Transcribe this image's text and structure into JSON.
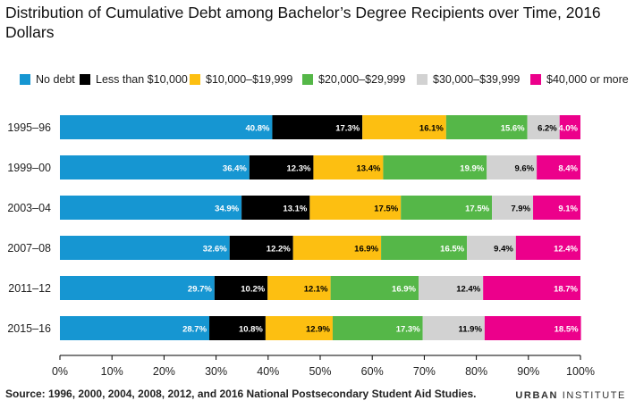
{
  "title": "Distribution of Cumulative Debt among Bachelor’s Degree Recipients over Time, 2016 Dollars",
  "source": "Source: 1996, 2000, 2004, 2008, 2012, and 2016 National Postsecondary Student Aid Studies.",
  "brand": {
    "bold": "URBAN",
    "light": "INSTITUTE"
  },
  "chart_data": {
    "type": "bar",
    "orientation": "horizontal",
    "stacked": true,
    "categories": [
      "1995–96",
      "1999–00",
      "2003–04",
      "2007–08",
      "2011–12",
      "2015–16"
    ],
    "series": [
      {
        "name": "No debt",
        "color": "#1696d2",
        "values": [
          40.8,
          36.4,
          34.9,
          32.6,
          29.7,
          28.7
        ]
      },
      {
        "name": "Less than $10,000",
        "color": "#000000",
        "values": [
          17.3,
          12.3,
          13.1,
          12.2,
          10.2,
          10.8
        ]
      },
      {
        "name": "$10,000–$19,999",
        "color": "#fdbf11",
        "values": [
          16.1,
          13.4,
          17.5,
          16.9,
          12.1,
          12.9
        ]
      },
      {
        "name": "$20,000–$29,999",
        "color": "#55b748",
        "values": [
          15.6,
          19.9,
          17.5,
          16.5,
          16.9,
          17.3
        ]
      },
      {
        "name": "$30,000–$39,999",
        "color": "#d2d2d2",
        "values": [
          6.2,
          9.6,
          7.9,
          9.4,
          12.4,
          11.9
        ]
      },
      {
        "name": "$40,000 or more",
        "color": "#ec008b",
        "values": [
          4.0,
          8.4,
          9.1,
          12.4,
          18.7,
          18.5
        ]
      }
    ],
    "labels": [
      [
        "40.8%",
        "17.3%",
        "16.1%",
        "15.6%",
        "6.2%",
        "4.0%"
      ],
      [
        "36.4%",
        "12.3%",
        "13.4%",
        "19.9%",
        "9.6%",
        "8.4%"
      ],
      [
        "34.9%",
        "13.1%",
        "17.5%",
        "17.5%",
        "7.9%",
        "9.1%"
      ],
      [
        "32.6%",
        "12.2%",
        "16.9%",
        "16.5%",
        "9.4%",
        "12.4%"
      ],
      [
        "29.7%",
        "10.2%",
        "12.1%",
        "16.9%",
        "12.4%",
        "18.7%"
      ],
      [
        "28.7%",
        "10.8%",
        "12.9%",
        "17.3%",
        "11.9%",
        "18.5%"
      ]
    ],
    "label_colors": [
      "#ffffff",
      "#ffffff",
      "#000000",
      "#ffffff",
      "#000000",
      "#ffffff"
    ],
    "xlim": [
      0,
      100
    ],
    "xticks": [
      "0%",
      "10%",
      "20%",
      "30%",
      "40%",
      "50%",
      "60%",
      "70%",
      "80%",
      "90%",
      "100%"
    ],
    "grid": false,
    "legend_position": "top"
  }
}
